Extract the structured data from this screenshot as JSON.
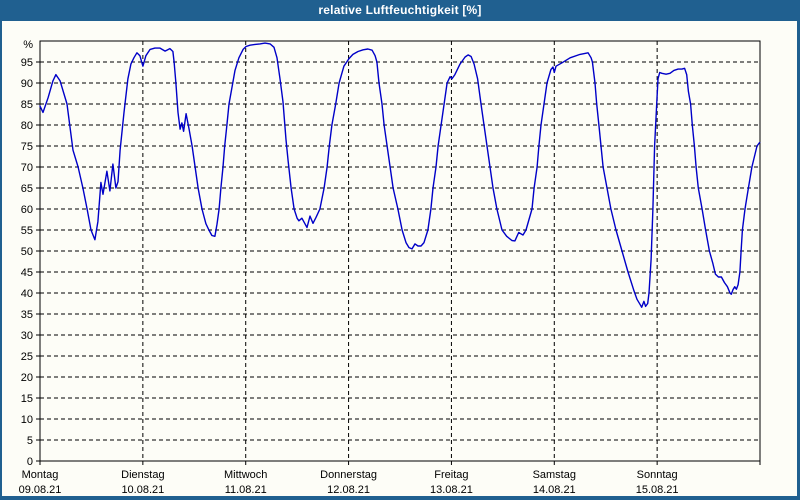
{
  "window": {
    "title": "relative Luftfeuchtigkeit [%]",
    "titlebar_color": "#206090",
    "content_background": "#fdfdf7"
  },
  "chart_data": {
    "type": "line",
    "title": "relative Luftfeuchtigkeit [%]",
    "ylabel": "%",
    "ylim": [
      0,
      100
    ],
    "yticks": [
      0,
      5,
      10,
      15,
      20,
      25,
      30,
      35,
      40,
      45,
      50,
      55,
      60,
      65,
      70,
      75,
      80,
      85,
      90,
      95
    ],
    "grid": "dashed-black",
    "legend": "none",
    "xlim_hours": [
      0,
      168
    ],
    "hours_per_day": 24,
    "day_labels": [
      {
        "name": "Montag",
        "date": "09.08.21"
      },
      {
        "name": "Dienstag",
        "date": "10.08.21"
      },
      {
        "name": "Mittwoch",
        "date": "11.08.21"
      },
      {
        "name": "Donnerstag",
        "date": "12.08.21"
      },
      {
        "name": "Freitag",
        "date": "13.08.21"
      },
      {
        "name": "Samstag",
        "date": "14.08.21"
      },
      {
        "name": "Sonntag",
        "date": "15.08.21"
      }
    ],
    "series": [
      {
        "name": "relative Luftfeuchtigkeit",
        "unit": "%",
        "color": "#0000c8",
        "points_hours_value": [
          [
            0,
            84.5
          ],
          [
            0.7,
            83
          ],
          [
            1.9,
            86.5
          ],
          [
            3,
            90.5
          ],
          [
            3.7,
            92
          ],
          [
            4.7,
            90.5
          ],
          [
            6.3,
            85
          ],
          [
            7.7,
            74
          ],
          [
            8.9,
            70
          ],
          [
            10,
            65
          ],
          [
            11,
            60
          ],
          [
            11.9,
            55
          ],
          [
            12.8,
            52.7
          ],
          [
            13.5,
            57
          ],
          [
            14.2,
            66.3
          ],
          [
            14.7,
            63.5
          ],
          [
            15.6,
            69
          ],
          [
            16.3,
            64.3
          ],
          [
            17,
            70.7
          ],
          [
            17.7,
            65
          ],
          [
            18.2,
            66.5
          ],
          [
            18.7,
            74
          ],
          [
            19.6,
            83
          ],
          [
            20.5,
            91
          ],
          [
            21.2,
            94.5
          ],
          [
            21.9,
            96
          ],
          [
            22.6,
            97.2
          ],
          [
            23.3,
            96.5
          ],
          [
            24,
            94
          ],
          [
            24.7,
            96.5
          ],
          [
            25.7,
            98
          ],
          [
            26.8,
            98.3
          ],
          [
            28,
            98.3
          ],
          [
            29.2,
            97.6
          ],
          [
            30.3,
            98.2
          ],
          [
            31,
            97.5
          ],
          [
            31.3,
            95
          ],
          [
            31.7,
            90
          ],
          [
            32.2,
            83
          ],
          [
            32.7,
            79
          ],
          [
            33.1,
            80.5
          ],
          [
            33.5,
            78.5
          ],
          [
            34.1,
            82.7
          ],
          [
            34.8,
            79
          ],
          [
            35.5,
            75
          ],
          [
            36.2,
            70
          ],
          [
            36.9,
            65
          ],
          [
            37.8,
            60
          ],
          [
            38.7,
            56.5
          ],
          [
            39.4,
            55
          ],
          [
            40.1,
            53.7
          ],
          [
            40.8,
            53.5
          ],
          [
            41.3,
            56.4
          ],
          [
            41.8,
            60
          ],
          [
            42.2,
            65
          ],
          [
            42.7,
            70
          ],
          [
            43.1,
            75
          ],
          [
            43.6,
            80
          ],
          [
            44.1,
            85
          ],
          [
            44.8,
            89
          ],
          [
            45.5,
            93
          ],
          [
            46.4,
            96
          ],
          [
            47.4,
            98
          ],
          [
            48.1,
            98.7
          ],
          [
            49,
            99
          ],
          [
            50.2,
            99.2
          ],
          [
            51.3,
            99.3
          ],
          [
            52.5,
            99.5
          ],
          [
            53.7,
            99.3
          ],
          [
            54.6,
            98.5
          ],
          [
            55.3,
            96
          ],
          [
            56,
            91
          ],
          [
            56.7,
            85.5
          ],
          [
            57.4,
            76.5
          ],
          [
            57.9,
            71.5
          ],
          [
            58.6,
            65
          ],
          [
            59.3,
            60
          ],
          [
            60,
            57.8
          ],
          [
            60.4,
            57.2
          ],
          [
            61.1,
            57.8
          ],
          [
            61.8,
            56.5
          ],
          [
            62.3,
            55.6
          ],
          [
            63,
            58.3
          ],
          [
            63.7,
            56.6
          ],
          [
            64.4,
            58
          ],
          [
            65.3,
            60
          ],
          [
            66.3,
            65
          ],
          [
            67,
            70
          ],
          [
            67.5,
            75
          ],
          [
            68.1,
            80
          ],
          [
            69,
            85
          ],
          [
            69.8,
            90
          ],
          [
            70.9,
            94
          ],
          [
            72.1,
            95.8
          ],
          [
            73,
            96.8
          ],
          [
            74.2,
            97.5
          ],
          [
            75.4,
            97.9
          ],
          [
            76.5,
            98.1
          ],
          [
            77.5,
            97.8
          ],
          [
            78.2,
            96.5
          ],
          [
            78.6,
            95
          ],
          [
            79.1,
            90
          ],
          [
            79.8,
            85
          ],
          [
            80.3,
            80
          ],
          [
            81,
            75
          ],
          [
            81.7,
            70
          ],
          [
            82.4,
            65
          ],
          [
            83.5,
            60
          ],
          [
            84.5,
            55
          ],
          [
            85.4,
            52
          ],
          [
            86.1,
            50.8
          ],
          [
            86.8,
            50.5
          ],
          [
            87.5,
            51.7
          ],
          [
            88.2,
            51.2
          ],
          [
            88.9,
            51.2
          ],
          [
            89.6,
            52
          ],
          [
            90.5,
            55
          ],
          [
            91.2,
            60
          ],
          [
            91.7,
            65
          ],
          [
            92.4,
            70
          ],
          [
            92.9,
            75
          ],
          [
            93.6,
            80
          ],
          [
            94.3,
            85
          ],
          [
            95,
            90
          ],
          [
            95.7,
            91.5
          ],
          [
            96.1,
            91
          ],
          [
            96.8,
            92
          ],
          [
            98,
            94.5
          ],
          [
            99.2,
            96.2
          ],
          [
            99.9,
            96.7
          ],
          [
            100.6,
            96.3
          ],
          [
            101.3,
            94.5
          ],
          [
            102.1,
            91
          ],
          [
            102.9,
            85
          ],
          [
            103.6,
            80
          ],
          [
            104.3,
            75
          ],
          [
            105,
            70
          ],
          [
            105.7,
            65
          ],
          [
            106.6,
            60
          ],
          [
            107.8,
            55
          ],
          [
            108.9,
            53.5
          ],
          [
            110.1,
            52.5
          ],
          [
            110.8,
            52.4
          ],
          [
            111.7,
            54.4
          ],
          [
            112.7,
            53.8
          ],
          [
            113.4,
            55
          ],
          [
            114.8,
            60
          ],
          [
            115.3,
            65
          ],
          [
            116,
            70
          ],
          [
            116.4,
            75
          ],
          [
            116.9,
            80
          ],
          [
            117.6,
            85
          ],
          [
            118.3,
            90
          ],
          [
            119.2,
            93.2
          ],
          [
            119.7,
            93.8
          ],
          [
            120,
            92.5
          ],
          [
            120.4,
            94
          ],
          [
            121.8,
            94.8
          ],
          [
            123.7,
            96
          ],
          [
            126,
            96.8
          ],
          [
            127.9,
            97.2
          ],
          [
            128.6,
            96
          ],
          [
            128.9,
            95
          ],
          [
            129.5,
            90
          ],
          [
            129.9,
            85
          ],
          [
            130.4,
            80
          ],
          [
            130.9,
            75
          ],
          [
            131.4,
            70
          ],
          [
            132.3,
            65
          ],
          [
            133.2,
            60
          ],
          [
            134.4,
            55
          ],
          [
            135.8,
            50
          ],
          [
            137.2,
            45
          ],
          [
            138.6,
            40.5
          ],
          [
            139.3,
            38.5
          ],
          [
            140,
            37.3
          ],
          [
            140.4,
            36.6
          ],
          [
            140.9,
            38
          ],
          [
            141.3,
            36.8
          ],
          [
            141.8,
            37.5
          ],
          [
            142.1,
            40
          ],
          [
            142.6,
            48
          ],
          [
            143,
            60
          ],
          [
            143.4,
            75
          ],
          [
            143.9,
            85
          ],
          [
            144.2,
            91
          ],
          [
            144.6,
            92.5
          ],
          [
            145.1,
            92.3
          ],
          [
            146.1,
            92.1
          ],
          [
            147,
            92.3
          ],
          [
            147.9,
            93
          ],
          [
            148.9,
            93.3
          ],
          [
            149.8,
            93.3
          ],
          [
            150.4,
            93.5
          ],
          [
            150.9,
            92
          ],
          [
            151.3,
            88
          ],
          [
            151.8,
            85
          ],
          [
            152.2,
            80
          ],
          [
            152.7,
            75
          ],
          [
            153.1,
            70
          ],
          [
            153.6,
            65
          ],
          [
            154.5,
            60
          ],
          [
            155.3,
            55
          ],
          [
            156.2,
            50
          ],
          [
            157,
            47
          ],
          [
            157.6,
            44.5
          ],
          [
            158.3,
            43.8
          ],
          [
            159,
            43.8
          ],
          [
            159.7,
            42.5
          ],
          [
            160.4,
            41.5
          ],
          [
            161,
            40
          ],
          [
            161.3,
            39.7
          ],
          [
            161.7,
            40.8
          ],
          [
            162.1,
            41.5
          ],
          [
            162.5,
            40.9
          ],
          [
            162.9,
            42
          ],
          [
            163.3,
            45
          ],
          [
            163.6,
            50
          ],
          [
            163.9,
            55
          ],
          [
            164.5,
            60
          ],
          [
            165.3,
            65
          ],
          [
            166.1,
            70
          ],
          [
            167.3,
            75
          ],
          [
            167.9,
            75.8
          ]
        ]
      }
    ]
  }
}
